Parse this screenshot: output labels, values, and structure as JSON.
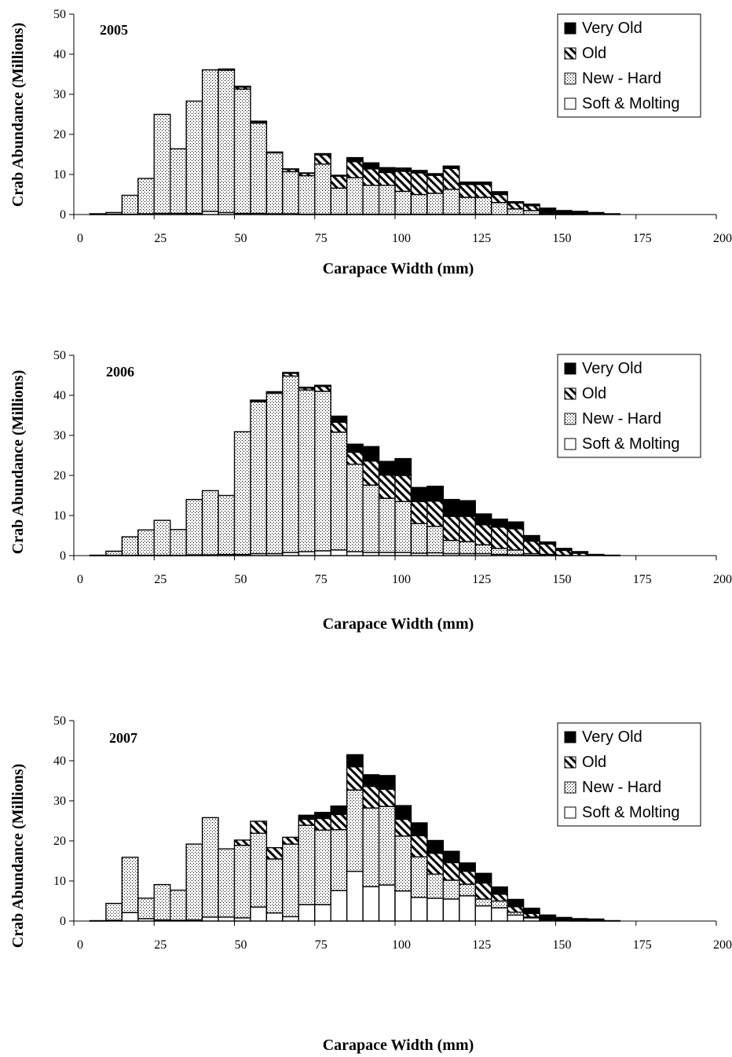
{
  "chart_data": [
    {
      "type": "bar",
      "stacked": true,
      "title": "2005",
      "xlabel": "Carapace Width (mm)",
      "ylabel": "Crab Abundance (Millions)",
      "xlim": [
        0,
        200
      ],
      "ylim": [
        0,
        50
      ],
      "xticks": [
        "0",
        "25",
        "50",
        "75",
        "100",
        "125",
        "150",
        "175",
        "200"
      ],
      "yticks": [
        "0",
        "10",
        "20",
        "30",
        "40",
        "50"
      ],
      "bin_width": 5,
      "legend": [
        "Very Old",
        "Old",
        "New - Hard",
        "Soft & Molting"
      ],
      "legend_position": "top-right",
      "x": [
        7.5,
        12.5,
        17.5,
        22.5,
        27.5,
        32.5,
        37.5,
        42.5,
        47.5,
        52.5,
        57.5,
        62.5,
        67.5,
        72.5,
        77.5,
        82.5,
        87.5,
        92.5,
        97.5,
        102.5,
        107.5,
        112.5,
        117.5,
        122.5,
        127.5,
        132.5,
        137.5,
        142.5,
        147.5,
        152.5,
        157.5,
        162.5,
        167.5
      ],
      "series": [
        {
          "name": "Soft & Molting",
          "values": [
            0.1,
            0.1,
            0.1,
            0.2,
            0.3,
            0.3,
            0.3,
            0.8,
            0.5,
            0.3,
            0.3,
            0.2,
            0.2,
            0.1,
            0.1,
            0.1,
            0.1,
            0.1,
            0.1,
            0.1,
            0.1,
            0.1,
            0.1,
            0.1,
            0.1,
            0,
            0,
            0,
            0,
            0,
            0,
            0,
            0
          ]
        },
        {
          "name": "New - Hard",
          "values": [
            0.1,
            0.4,
            4.7,
            8.8,
            24.7,
            16.1,
            28,
            35.3,
            35.5,
            31,
            22.5,
            15.2,
            10.5,
            9.6,
            12.5,
            6.5,
            9.1,
            7.2,
            7.2,
            5.7,
            4.9,
            5.2,
            6.2,
            4.2,
            4.2,
            3,
            1.4,
            1,
            0.1,
            0.1,
            0,
            0,
            0
          ]
        },
        {
          "name": "Old",
          "values": [
            0,
            0,
            0,
            0,
            0,
            0,
            0,
            0,
            0.3,
            0.5,
            0.3,
            0.1,
            0.6,
            0.6,
            2.3,
            3,
            4,
            4.1,
            3.2,
            5,
            5.4,
            4.5,
            5.2,
            3.2,
            3.2,
            2,
            1.5,
            1.2,
            0.3,
            0.2,
            0.1,
            0,
            0
          ]
        },
        {
          "name": "Very Old",
          "values": [
            0,
            0,
            0,
            0,
            0,
            0,
            0,
            0,
            0,
            0.2,
            0.2,
            0.1,
            0.1,
            0.1,
            0.3,
            0.2,
            1,
            1.5,
            1.2,
            0.8,
            0.6,
            0.4,
            0.6,
            0.6,
            0.6,
            0.7,
            0.3,
            0.4,
            1.2,
            0.7,
            0.7,
            0.5,
            0.2
          ]
        }
      ]
    },
    {
      "type": "bar",
      "stacked": true,
      "title": "2006",
      "xlabel": "Carapace Width (mm)",
      "ylabel": "Crab Abundance (Millions)",
      "xlim": [
        0,
        200
      ],
      "ylim": [
        0,
        50
      ],
      "xticks": [
        "0",
        "25",
        "50",
        "75",
        "100",
        "125",
        "150",
        "175",
        "200"
      ],
      "yticks": [
        "0",
        "10",
        "20",
        "30",
        "40",
        "50"
      ],
      "bin_width": 5,
      "legend": [
        "Very Old",
        "Old",
        "New - Hard",
        "Soft & Molting"
      ],
      "legend_position": "top-right",
      "x": [
        2.5,
        7.5,
        12.5,
        17.5,
        22.5,
        27.5,
        32.5,
        37.5,
        42.5,
        47.5,
        52.5,
        57.5,
        62.5,
        67.5,
        72.5,
        77.5,
        82.5,
        87.5,
        92.5,
        97.5,
        102.5,
        107.5,
        112.5,
        117.5,
        122.5,
        127.5,
        132.5,
        137.5,
        142.5,
        147.5,
        152.5,
        157.5,
        162.5,
        167.5
      ],
      "series": [
        {
          "name": "Soft & Molting",
          "values": [
            0,
            0.1,
            0.1,
            0.1,
            0.1,
            0.1,
            0.1,
            0.2,
            0.2,
            0.3,
            0.3,
            0.5,
            0.5,
            0.8,
            1,
            1.2,
            1.4,
            1,
            0.8,
            0.8,
            0.8,
            0.6,
            0.7,
            0.5,
            0.5,
            0.5,
            0.3,
            0.2,
            0.1,
            0.1,
            0,
            0,
            0,
            0
          ]
        },
        {
          "name": "New - Hard",
          "values": [
            0,
            0,
            1,
            4.6,
            6.3,
            8.7,
            6.4,
            13.8,
            16,
            14.7,
            30.6,
            37.9,
            40,
            44,
            40.3,
            39.8,
            29.4,
            21.8,
            16.8,
            13.5,
            12.7,
            7.4,
            6.6,
            3.3,
            3,
            2.2,
            1.5,
            1.2,
            0.4,
            0.2,
            0.1,
            0,
            0,
            0
          ]
        },
        {
          "name": "Old",
          "values": [
            0,
            0,
            0,
            0,
            0,
            0,
            0,
            0,
            0,
            0,
            0,
            0.2,
            0.2,
            0.7,
            0.5,
            1.2,
            2.5,
            3,
            6,
            5.8,
            6.5,
            5.5,
            6.3,
            6,
            6.3,
            5,
            5.3,
            5.3,
            3.1,
            2.6,
            1.2,
            0.6,
            0.2,
            0
          ]
        },
        {
          "name": "Very Old",
          "values": [
            0,
            0,
            0,
            0,
            0,
            0,
            0,
            0,
            0,
            0,
            0,
            0.2,
            0.2,
            0.2,
            0.2,
            0.3,
            1.5,
            2,
            3.6,
            3.4,
            4.2,
            3.5,
            3.7,
            4.2,
            3.9,
            2.7,
            2,
            1.7,
            1.4,
            0.5,
            0.5,
            0.4,
            0.1,
            0.1
          ]
        }
      ]
    },
    {
      "type": "bar",
      "stacked": true,
      "title": "2007",
      "xlabel": "Carapace Width (mm)",
      "ylabel": "Crab Abundance (Millions)",
      "xlim": [
        0,
        200
      ],
      "ylim": [
        0,
        50
      ],
      "xticks": [
        "0",
        "25",
        "50",
        "75",
        "100",
        "125",
        "150",
        "175",
        "200"
      ],
      "yticks": [
        "0",
        "10",
        "20",
        "30",
        "40",
        "50"
      ],
      "bin_width": 5,
      "legend": [
        "Very Old",
        "Old",
        "New - Hard",
        "Soft & Molting"
      ],
      "legend_position": "top-right",
      "x": [
        7.5,
        12.5,
        17.5,
        22.5,
        27.5,
        32.5,
        37.5,
        42.5,
        47.5,
        52.5,
        57.5,
        62.5,
        67.5,
        72.5,
        77.5,
        82.5,
        87.5,
        92.5,
        97.5,
        102.5,
        107.5,
        112.5,
        117.5,
        122.5,
        127.5,
        132.5,
        137.5,
        142.5,
        147.5,
        152.5,
        157.5,
        162.5,
        167.5
      ],
      "series": [
        {
          "name": "Soft & Molting",
          "values": [
            0.1,
            0.2,
            2.1,
            0.6,
            0.3,
            0.2,
            0.3,
            1,
            1,
            0.8,
            3.5,
            2,
            1.1,
            4.1,
            4.1,
            7.6,
            12.4,
            8.6,
            9,
            7.5,
            5.9,
            5.7,
            5.5,
            6.3,
            3.8,
            3.3,
            1.5,
            0.8,
            0.3,
            0.2,
            0.1,
            0.1,
            0
          ]
        },
        {
          "name": "New - Hard",
          "values": [
            0,
            4.2,
            13.8,
            5.1,
            8.8,
            7.5,
            18.9,
            24.8,
            17,
            18.1,
            18.4,
            13.5,
            18.1,
            19.8,
            18.6,
            15.2,
            20.3,
            19.6,
            19.6,
            13.7,
            10.1,
            6,
            4.7,
            2.9,
            1.7,
            1.7,
            0.7,
            0.2,
            0,
            0,
            0,
            0,
            0
          ]
        },
        {
          "name": "Old",
          "values": [
            0,
            0,
            0,
            0,
            0,
            0,
            0,
            0,
            0,
            1.3,
            3,
            2.8,
            1.7,
            1.5,
            2.9,
            3.8,
            5.8,
            5.4,
            4.3,
            4.2,
            5.3,
            5.2,
            4.4,
            3.2,
            4,
            1.7,
            1.4,
            0.9,
            0.2,
            0,
            0,
            0,
            0
          ]
        },
        {
          "name": "Very Old",
          "values": [
            0,
            0,
            0,
            0,
            0,
            0,
            0,
            0,
            0,
            0,
            0,
            0,
            0,
            1,
            1.5,
            2.1,
            3,
            2.9,
            3.4,
            3.4,
            3.2,
            3.2,
            2.8,
            2.1,
            2.4,
            1.8,
            1.8,
            1.3,
            1,
            0.7,
            0.5,
            0.4,
            0.1
          ]
        }
      ]
    }
  ]
}
